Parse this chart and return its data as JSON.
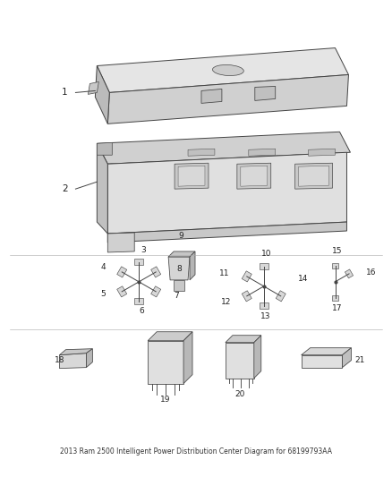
{
  "title": "2013 Ram 2500 Intelligent Power Distribution Center Diagram for 68199793AA",
  "background_color": "#ffffff",
  "line_color": "#444444",
  "text_color": "#222222",
  "fig_width": 4.38,
  "fig_height": 5.33,
  "dpi": 100
}
